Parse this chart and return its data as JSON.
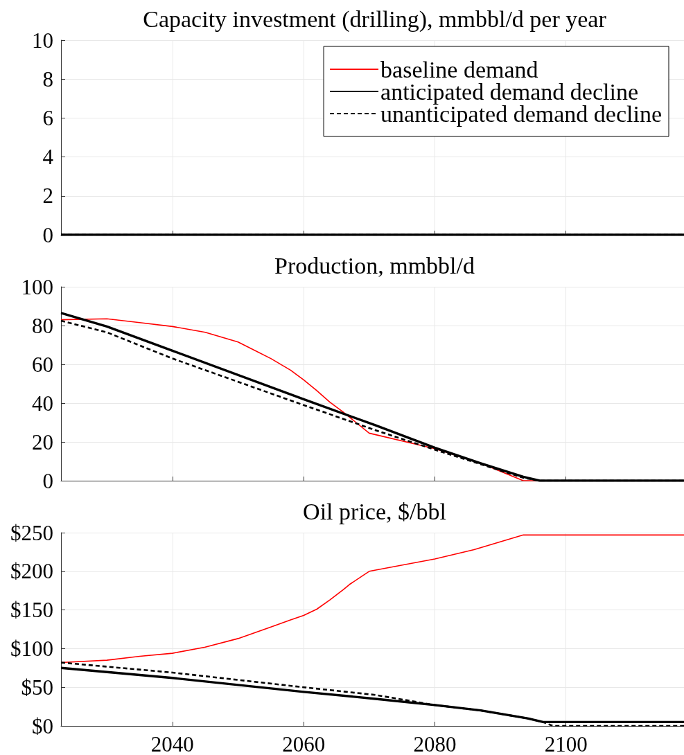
{
  "chart_data": [
    {
      "type": "line",
      "title": "Capacity investment (drilling), mmbbl/d per year",
      "series": [
        {
          "name": "baseline demand",
          "color": "#ff0000"
        },
        {
          "name": "anticipated demand decline",
          "color": "#000000",
          "x": [
            2023,
            2118
          ],
          "values": [
            0,
            0
          ]
        },
        {
          "name": "unanticipated demand decline",
          "color": "#000000",
          "line_style": "dashed",
          "x": [
            2023,
            2118
          ],
          "values": [
            0,
            0
          ]
        }
      ],
      "xlim": [
        2023,
        2118
      ],
      "xticks": [
        2040,
        2060,
        2080,
        2100
      ],
      "ylim": [
        0,
        10
      ],
      "yticks": [
        0,
        2,
        4,
        6,
        8,
        10
      ],
      "grid": true,
      "legend": "top right",
      "tick_labels": "y"
    },
    {
      "type": "line",
      "title": "Production, mmbbl/d",
      "series": [
        {
          "color": "#ff0000",
          "x": [
            2023,
            2030,
            2035,
            2040,
            2045,
            2050,
            2055,
            2058,
            2060,
            2062,
            2064,
            2066,
            2068,
            2070,
            2080,
            2087,
            2093.5,
            2118
          ],
          "values": [
            83,
            83.5,
            81.5,
            79.5,
            76.5,
            71.5,
            63,
            57,
            52,
            46.5,
            40.5,
            35.5,
            30,
            24.5,
            16.5,
            9,
            0,
            0
          ]
        },
        {
          "color": "#000000",
          "x": [
            2023,
            2030,
            2040,
            2060,
            2071,
            2080,
            2087,
            2093.5,
            2096,
            2118
          ],
          "values": [
            86.5,
            79.5,
            67,
            42,
            28.5,
            17,
            9,
            2,
            0,
            0
          ]
        },
        {
          "color": "#000000",
          "line_style": "dashed",
          "x": [
            2023,
            2030,
            2040,
            2060,
            2071,
            2080,
            2087,
            2093.5,
            2096,
            2118
          ],
          "values": [
            82.5,
            76.5,
            63,
            39,
            26,
            16,
            8.5,
            1.5,
            0,
            0
          ]
        }
      ],
      "xlim": [
        2023,
        2118
      ],
      "xticks": [
        2040,
        2060,
        2080,
        2100
      ],
      "ylim": [
        0,
        100
      ],
      "yticks": [
        0,
        20,
        40,
        60,
        80,
        100
      ],
      "grid": true,
      "tick_labels": "y"
    },
    {
      "type": "line",
      "title": "Oil price, $/bbl",
      "series": [
        {
          "color": "#ff0000",
          "x": [
            2023,
            2030,
            2035,
            2040,
            2045,
            2050,
            2055,
            2058,
            2060,
            2062,
            2064,
            2066,
            2067,
            2070,
            2080,
            2086,
            2093.5,
            2118
          ],
          "values": [
            82,
            85,
            90,
            94,
            102,
            113,
            128,
            137,
            143,
            151,
            163,
            176,
            183,
            200,
            216,
            228,
            247,
            247
          ]
        },
        {
          "color": "#000000",
          "x": [
            2023,
            2040,
            2060,
            2071,
            2080,
            2087,
            2094,
            2096.5,
            2118
          ],
          "values": [
            75,
            62,
            44,
            35,
            27,
            20,
            10,
            5,
            5
          ]
        },
        {
          "color": "#000000",
          "line_style": "dashed",
          "x": [
            2023,
            2040,
            2060,
            2071,
            2080,
            2087,
            2094,
            2096.5,
            2098,
            2118
          ],
          "values": [
            82,
            69,
            50,
            40,
            27,
            20,
            10,
            5,
            0,
            0
          ]
        }
      ],
      "xlim": [
        2023,
        2118
      ],
      "xticks": [
        2040,
        2060,
        2080,
        2100
      ],
      "ylim": [
        0,
        250
      ],
      "yticks": [
        {
          "value": 0,
          "label": "$0"
        },
        {
          "value": 50,
          "label": "$50"
        },
        {
          "value": 100,
          "label": "$100"
        },
        {
          "value": 150,
          "label": "$150"
        },
        {
          "value": 200,
          "label": "$200"
        },
        {
          "value": 250,
          "label": "$250"
        }
      ],
      "grid": true
    }
  ]
}
